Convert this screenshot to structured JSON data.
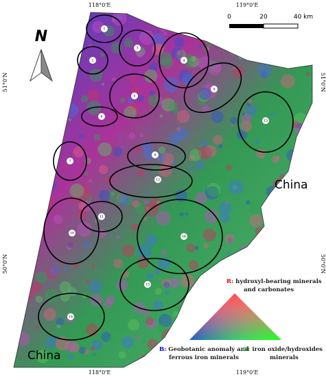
{
  "north_arrow": "N",
  "graticule": {
    "top": [
      "118°0'E",
      "119°0'E"
    ],
    "bottom": [
      "118°0'E",
      "119°0'E"
    ],
    "left": [
      "51°0'N",
      "50°0'N"
    ],
    "right": [
      "51°0'N",
      "50°0'N"
    ]
  },
  "scale_bar": [
    "0",
    "20",
    "40 km"
  ],
  "countries": [
    "China",
    "China"
  ],
  "zones": [
    "1",
    "2",
    "3",
    "4",
    "5",
    "6",
    "7",
    "8",
    "9",
    "10",
    "11",
    "12",
    "13",
    "14",
    "15",
    "16"
  ],
  "legend": {
    "red": {
      "key": "R:",
      "lines": [
        "hydroxyl-bearing minerals",
        "and carbonates"
      ]
    },
    "blue": {
      "key": "B:",
      "lines": [
        "Geobotanic anomaly and",
        "ferrous iron minerals"
      ]
    },
    "green": {
      "key": "G:",
      "lines": [
        "iron oxide/hydroxides",
        "minerals"
      ]
    }
  }
}
